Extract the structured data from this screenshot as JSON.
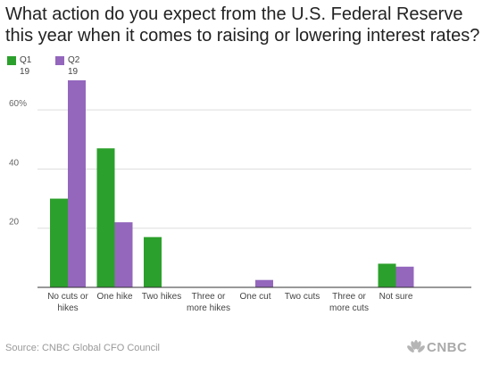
{
  "chart_data": {
    "type": "bar",
    "title": "What action do you expect from the U.S. Federal Reserve this year when it comes to raising or lowering interest rates?",
    "categories": [
      [
        "No cuts or",
        "hikes"
      ],
      [
        "One hike"
      ],
      [
        "Two hikes"
      ],
      [
        "Three or",
        "more hikes"
      ],
      [
        "One cut"
      ],
      [
        "Two cuts"
      ],
      [
        "Three or",
        "more cuts"
      ],
      [
        "Not sure"
      ]
    ],
    "series": [
      {
        "name": "Q1 19",
        "name_lines": [
          "Q1",
          "19"
        ],
        "color": "#2ca02c",
        "values": [
          30,
          47,
          17,
          0,
          0,
          0,
          0,
          8
        ]
      },
      {
        "name": "Q2 19",
        "name_lines": [
          "Q2",
          "19"
        ],
        "color": "#9467bd",
        "values": [
          70,
          22,
          0,
          0,
          2.5,
          0,
          0,
          7
        ]
      }
    ],
    "ylim": [
      0,
      70
    ],
    "yticks": [
      20,
      40,
      60
    ],
    "ytick_labels": [
      "20",
      "40",
      "60%"
    ],
    "grid": true,
    "legend": "top-left"
  },
  "footer": {
    "source": "Source: CNBC Global CFO Council",
    "logo_text": "CNBC"
  }
}
